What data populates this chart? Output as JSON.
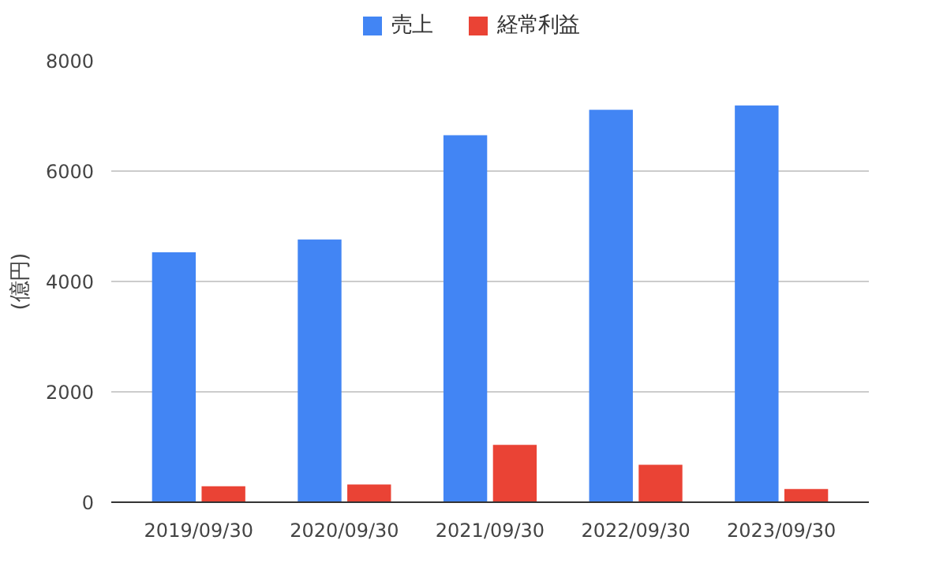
{
  "chart_data": {
    "type": "bar",
    "ylabel": "(億円)",
    "categories": [
      "2019/09/30",
      "2020/09/30",
      "2021/09/30",
      "2022/09/30",
      "2023/09/30"
    ],
    "series": [
      {
        "name": "売上",
        "color": "#4285f4",
        "values": [
          4530,
          4760,
          6650,
          7110,
          7190
        ]
      },
      {
        "name": "経常利益",
        "color": "#ea4335",
        "values": [
          290,
          320,
          1040,
          680,
          240
        ]
      }
    ],
    "ylim": [
      0,
      8000
    ],
    "yticks": [
      0,
      2000,
      4000,
      6000,
      8000
    ],
    "grid": "y",
    "legend": "top"
  }
}
